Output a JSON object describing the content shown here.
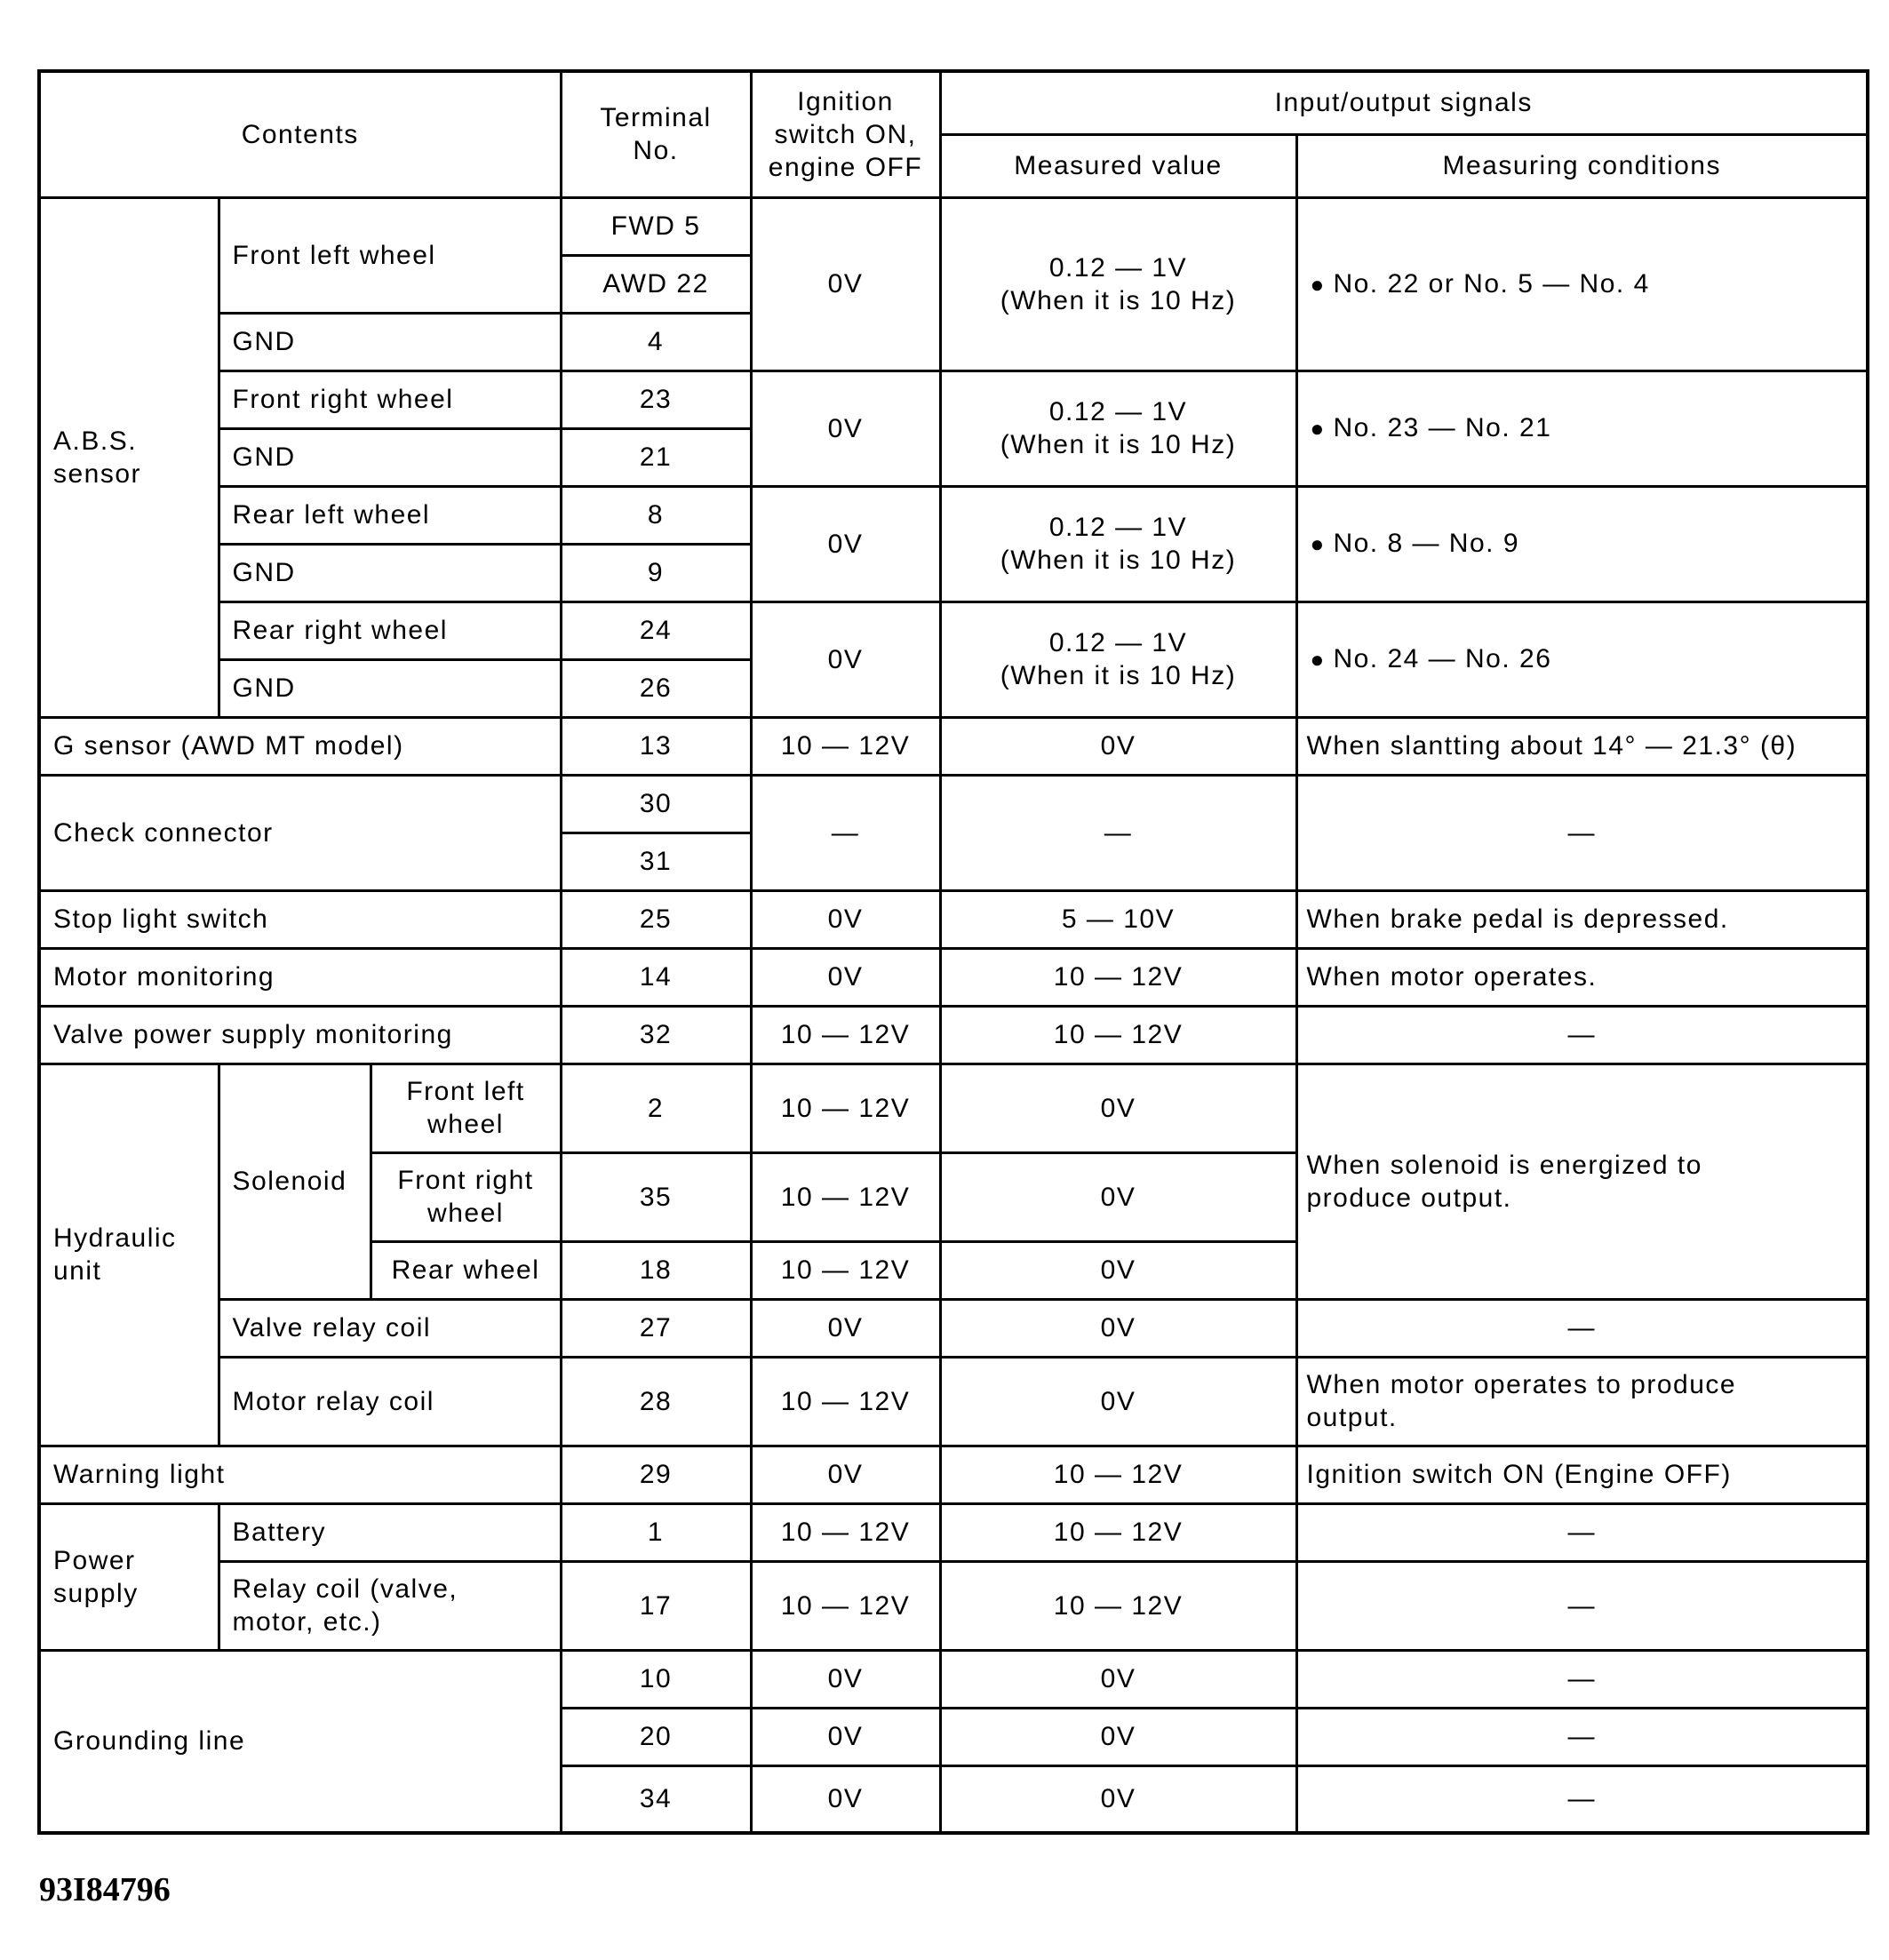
{
  "header": {
    "contents": "Contents",
    "terminal": "Terminal\nNo.",
    "ignition": "Ignition\nswitch ON,\nengine OFF",
    "io": "Input/output signals",
    "measured": "Measured value",
    "conditions": "Measuring conditions"
  },
  "abs": {
    "label": "A.B.S.\nsensor",
    "front_left": {
      "label": "Front left wheel",
      "t1": "FWD 5",
      "t2": "AWD 22",
      "gnd": "GND",
      "gnd_t": "4",
      "ign": "0V",
      "meas": "0.12 — 1V\n(When it is 10 Hz)",
      "cond": "No. 22 or No. 5 — No. 4"
    },
    "front_right": {
      "label": "Front right wheel",
      "t": "23",
      "gnd": "GND",
      "gnd_t": "21",
      "ign": "0V",
      "meas": "0.12 — 1V\n(When it is 10 Hz)",
      "cond": "No. 23 — No. 21"
    },
    "rear_left": {
      "label": "Rear left wheel",
      "t": "8",
      "gnd": "GND",
      "gnd_t": "9",
      "ign": "0V",
      "meas": "0.12 — 1V\n(When it is 10 Hz)",
      "cond": "No. 8 — No. 9"
    },
    "rear_right": {
      "label": "Rear right wheel",
      "t": "24",
      "gnd": "GND",
      "gnd_t": "26",
      "ign": "0V",
      "meas": "0.12 — 1V\n(When it is 10 Hz)",
      "cond": "No. 24 — No. 26"
    }
  },
  "g_sensor": {
    "label": "G sensor (AWD MT model)",
    "t": "13",
    "ign": "10 — 12V",
    "meas": "0V",
    "cond": "When slantting about 14° — 21.3° (θ)"
  },
  "check": {
    "label": "Check connector",
    "t1": "30",
    "t2": "31",
    "ign": "—",
    "meas": "—",
    "cond": "—"
  },
  "stop": {
    "label": "Stop light switch",
    "t": "25",
    "ign": "0V",
    "meas": "5 — 10V",
    "cond": "When brake pedal is depressed."
  },
  "motor_mon": {
    "label": "Motor monitoring",
    "t": "14",
    "ign": "0V",
    "meas": "10 — 12V",
    "cond": "When motor operates."
  },
  "valve_mon": {
    "label": "Valve power supply monitoring",
    "t": "32",
    "ign": "10 — 12V",
    "meas": "10 — 12V",
    "cond": "—"
  },
  "hydraulic": {
    "label": "Hydraulic\nunit",
    "solenoid": "Solenoid",
    "sol_cond": "When solenoid is energized to\nproduce output.",
    "fl": {
      "label": "Front left\nwheel",
      "t": "2",
      "ign": "10 — 12V",
      "meas": "0V"
    },
    "fr": {
      "label": "Front right\nwheel",
      "t": "35",
      "ign": "10 — 12V",
      "meas": "0V"
    },
    "rear": {
      "label": "Rear wheel",
      "t": "18",
      "ign": "10 — 12V",
      "meas": "0V"
    },
    "valve_relay": {
      "label": "Valve relay coil",
      "t": "27",
      "ign": "0V",
      "meas": "0V",
      "cond": "—"
    },
    "motor_relay": {
      "label": "Motor relay coil",
      "t": "28",
      "ign": "10 — 12V",
      "meas": "0V",
      "cond": "When motor operates to produce\noutput."
    }
  },
  "warning": {
    "label": "Warning light",
    "t": "29",
    "ign": "0V",
    "meas": "10 — 12V",
    "cond": "Ignition switch ON (Engine OFF)"
  },
  "power": {
    "label": "Power\nsupply",
    "battery": {
      "label": "Battery",
      "t": "1",
      "ign": "10 — 12V",
      "meas": "10 — 12V",
      "cond": "—"
    },
    "relay": {
      "label": "Relay coil (valve,\nmotor, etc.)",
      "t": "17",
      "ign": "10 — 12V",
      "meas": "10 — 12V",
      "cond": "—"
    }
  },
  "ground": {
    "label": "Grounding line",
    "rows": [
      {
        "t": "10",
        "ign": "0V",
        "meas": "0V",
        "cond": "—"
      },
      {
        "t": "20",
        "ign": "0V",
        "meas": "0V",
        "cond": "—"
      },
      {
        "t": "34",
        "ign": "0V",
        "meas": "0V",
        "cond": "—"
      }
    ]
  },
  "figure_id": "93I84796"
}
